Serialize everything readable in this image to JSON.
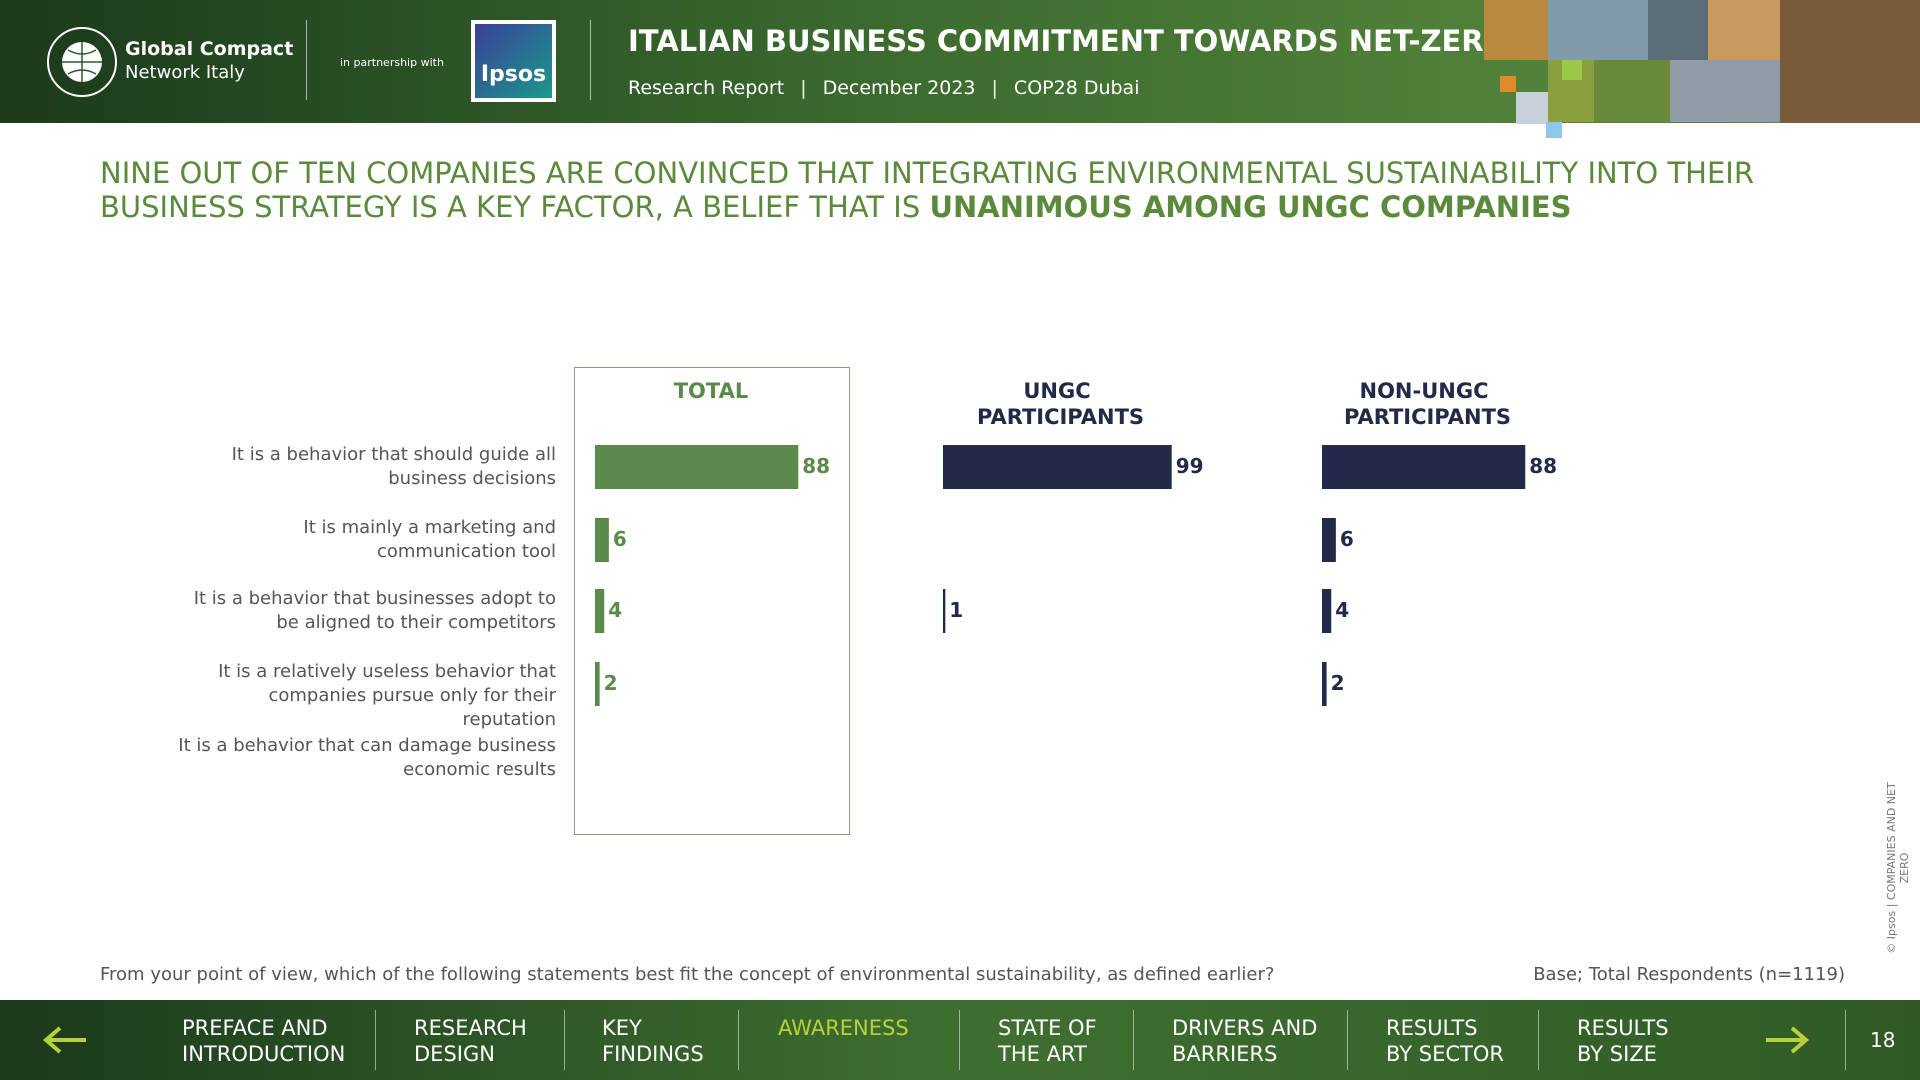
{
  "header": {
    "logo_line1": "Global Compact",
    "logo_line2": "Network Italy",
    "partnership": "in partnership with",
    "partner": "Ipsos",
    "report_title": "ITALIAN BUSINESS COMMITMENT TOWARDS NET-ZERO",
    "meta": [
      "Research Report",
      "December 2023",
      "COP28 Dubai"
    ]
  },
  "title": "NINE OUT OF TEN COMPANIES ARE CONVINCED THAT INTEGRATING ENVIRONMENTAL SUSTAINABILITY INTO THEIR BUSINESS STRATEGY IS A KEY FACTOR, A BELIEF THAT IS",
  "title_highlight": "UNANIMOUS AMONG UNGC COMPANIES",
  "chart_data": {
    "type": "bar",
    "orientation": "horizontal",
    "categories": [
      "It is a behavior that should guide all business decisions",
      "It is mainly a marketing and communication tool",
      "It is a behavior that businesses adopt to be aligned to their competitors",
      "It is a relatively useless behavior that companies pursue only for their reputation",
      "It is a behavior that can damage business economic results"
    ],
    "series": [
      {
        "name": "TOTAL",
        "color": "#5b8a4b",
        "values": [
          88,
          6,
          4,
          2,
          null
        ]
      },
      {
        "name": "UNGC PARTICIPANTS",
        "color": "#232a48",
        "values": [
          99,
          null,
          1,
          null,
          null
        ]
      },
      {
        "name": "NON-UNGC PARTICIPANTS",
        "color": "#232a48",
        "values": [
          88,
          6,
          4,
          2,
          null
        ]
      }
    ]
  },
  "question": "From your point of view, which of the following statements best fit the concept of environmental sustainability, as defined earlier?",
  "base": "Base; Total Respondents (n=1119)",
  "copyright": "© Ipsos | COMPANIES AND NET ZERO",
  "nav": [
    {
      "lines": [
        "PREFACE AND",
        "INTRODUCTION"
      ]
    },
    {
      "lines": [
        "RESEARCH",
        "DESIGN"
      ]
    },
    {
      "lines": [
        "KEY",
        "FINDINGS"
      ]
    },
    {
      "lines": [
        "AWARENESS"
      ],
      "highlighted": true
    },
    {
      "lines": [
        "STATE OF",
        "THE ART"
      ]
    },
    {
      "lines": [
        "DRIVERS AND",
        "BARRIERS"
      ]
    },
    {
      "lines": [
        "RESULTS",
        "BY SECTOR"
      ]
    },
    {
      "lines": [
        "RESULTS",
        "BY SIZE"
      ]
    }
  ],
  "page_number": "18"
}
